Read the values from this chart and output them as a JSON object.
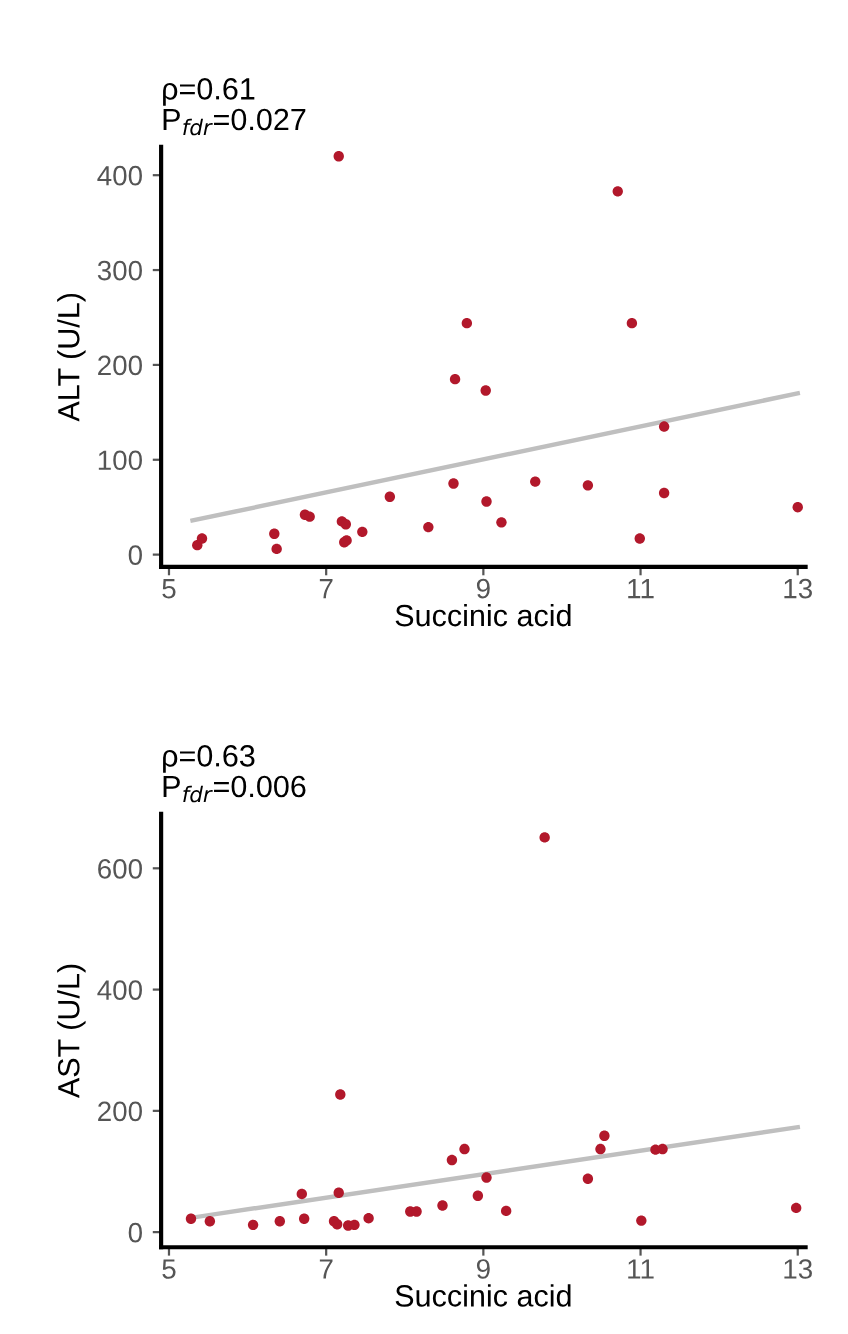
{
  "chart_data": [
    {
      "type": "scatter",
      "title": "ρ=0.61\nP$_{fdr}$=0.027",
      "xlabel": "Succinic acid",
      "ylabel": "ALT (U/L)",
      "xlim": [
        4.9,
        13.1
      ],
      "xticks": [
        5,
        7,
        9,
        11,
        13
      ],
      "ylim": [
        -13,
        430
      ],
      "yticks": [
        0,
        100,
        200,
        300,
        400
      ],
      "grid": false,
      "legend": false,
      "series": [
        {
          "marker": "circle",
          "color": "#b2182b",
          "x": [
            5.36,
            5.42,
            6.34,
            6.37,
            6.73,
            6.79,
            7.16,
            7.2,
            7.25,
            7.23,
            7.26,
            7.46,
            7.81,
            8.3,
            8.62,
            8.64,
            8.79,
            9.03,
            9.04,
            9.23,
            9.66,
            10.33,
            10.71,
            10.89,
            10.99,
            11.3,
            11.3,
            13.0
          ],
          "values": [
            10,
            17,
            22,
            6,
            42,
            40,
            420,
            35,
            32,
            13,
            15,
            24,
            61,
            29,
            75,
            185,
            244,
            173,
            56,
            34,
            77,
            73,
            383,
            244,
            17,
            65,
            135,
            50
          ]
        },
        {
          "type": "line",
          "marker": "none",
          "color": "#bfbfbf",
          "x": [
            5.3,
            13.0
          ],
          "values": [
            36,
            170
          ]
        }
      ]
    },
    {
      "type": "scatter",
      "title": "ρ=0.63\nP$_{fdr}$=0.006",
      "xlabel": "Succinic acid",
      "ylabel": "AST (U/L)",
      "xlim": [
        4.9,
        13.1
      ],
      "xticks": [
        5,
        7,
        9,
        11,
        13
      ],
      "ylim": [
        -25,
        690
      ],
      "yticks": [
        0,
        200,
        400,
        600
      ],
      "grid": false,
      "legend": false,
      "series": [
        {
          "marker": "circle",
          "color": "#b2182b",
          "x": [
            5.28,
            5.52,
            6.07,
            6.41,
            6.69,
            6.72,
            7.1,
            7.14,
            7.16,
            7.18,
            7.28,
            7.36,
            7.54,
            8.07,
            8.15,
            8.48,
            8.6,
            8.76,
            8.93,
            9.04,
            9.29,
            9.78,
            10.33,
            10.49,
            10.54,
            11.01,
            11.19,
            11.28,
            12.98
          ],
          "values": [
            22,
            18,
            12,
            18,
            63,
            22,
            18,
            13,
            65,
            227,
            11,
            12,
            23,
            34,
            34,
            44,
            119,
            137,
            60,
            90,
            35,
            651,
            88,
            137,
            159,
            19,
            136,
            137,
            40
          ]
        },
        {
          "type": "line",
          "marker": "none",
          "color": "#bfbfbf",
          "x": [
            5.3,
            13.0
          ],
          "values": [
            24,
            173
          ]
        }
      ]
    }
  ]
}
